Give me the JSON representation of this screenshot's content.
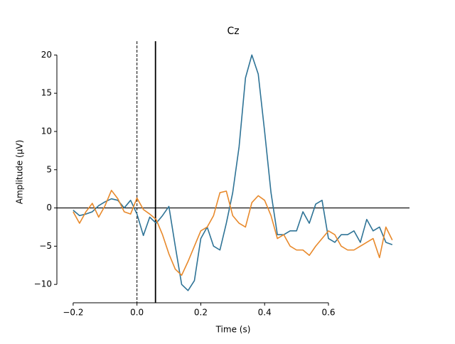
{
  "chart_data": {
    "type": "line",
    "title": "Cz",
    "xlabel": "Time (s)",
    "ylabel": "Amplitude (µV)",
    "x": [
      -0.2,
      -0.18,
      -0.16,
      -0.14,
      -0.12,
      -0.1,
      -0.08,
      -0.06,
      -0.04,
      -0.02,
      0,
      0.02,
      0.04,
      0.06,
      0.08,
      0.1,
      0.12,
      0.14,
      0.16,
      0.18,
      0.2,
      0.22,
      0.24,
      0.26,
      0.28,
      0.3,
      0.32,
      0.34,
      0.36,
      0.38,
      0.4,
      0.42,
      0.44,
      0.46,
      0.48,
      0.5,
      0.52,
      0.54,
      0.56,
      0.58,
      0.6,
      0.62,
      0.64,
      0.66,
      0.68,
      0.7,
      0.72,
      0.74,
      0.76,
      0.78,
      0.8
    ],
    "series": [
      {
        "color": "#2e7396",
        "values": [
          -0.3,
          -1.0,
          -0.8,
          -0.5,
          0.3,
          0.8,
          1.2,
          1.0,
          0.0,
          1.0,
          -0.8,
          -3.6,
          -1.2,
          -2.0,
          -1.0,
          0.2,
          -5.0,
          -10.0,
          -10.8,
          -9.5,
          -4.0,
          -2.5,
          -5.0,
          -5.5,
          -2.0,
          2.0,
          8.0,
          17.0,
          20.0,
          17.5,
          10.0,
          2.0,
          -3.5,
          -3.5,
          -3.0,
          -3.0,
          -0.5,
          -2.0,
          0.5,
          1.0,
          -4.0,
          -4.5,
          -3.5,
          -3.5,
          -3.0,
          -4.5,
          -1.5,
          -3.0,
          -2.5,
          -4.5,
          -4.8
        ]
      },
      {
        "color": "#e8892b",
        "values": [
          -0.5,
          -2.0,
          -0.5,
          0.6,
          -1.2,
          0.3,
          2.3,
          1.2,
          -0.5,
          -0.8,
          1.3,
          -0.2,
          -0.8,
          -1.5,
          -3.5,
          -6.0,
          -8.0,
          -8.8,
          -7.0,
          -5.0,
          -3.0,
          -2.5,
          -1.0,
          2.0,
          2.2,
          -1.0,
          -2.0,
          -2.5,
          0.7,
          1.6,
          1.0,
          -1.0,
          -4.0,
          -3.5,
          -5.0,
          -5.5,
          -5.5,
          -6.2,
          -5.0,
          -4.0,
          -3.0,
          -3.5,
          -5.0,
          -5.5,
          -5.5,
          -5.0,
          -4.5,
          -4.0,
          -6.5,
          -2.5,
          -4.2
        ]
      }
    ],
    "xlim": [
      -0.251,
      0.854
    ],
    "ylim": [
      -12.4,
      21.8
    ],
    "xticks": [
      {
        "value": -0.2,
        "label": "−0.2"
      },
      {
        "value": 0,
        "label": "0.0"
      },
      0.2,
      0.4,
      0.6
    ],
    "yticks": [
      {
        "value": -10,
        "label": "−10"
      },
      {
        "value": -5,
        "label": "−5"
      },
      0,
      5,
      10,
      15,
      20
    ],
    "vlines": [
      {
        "x": 0,
        "style": "dashed"
      },
      {
        "x": 0.058,
        "style": "solid"
      }
    ],
    "hline": 0
  }
}
